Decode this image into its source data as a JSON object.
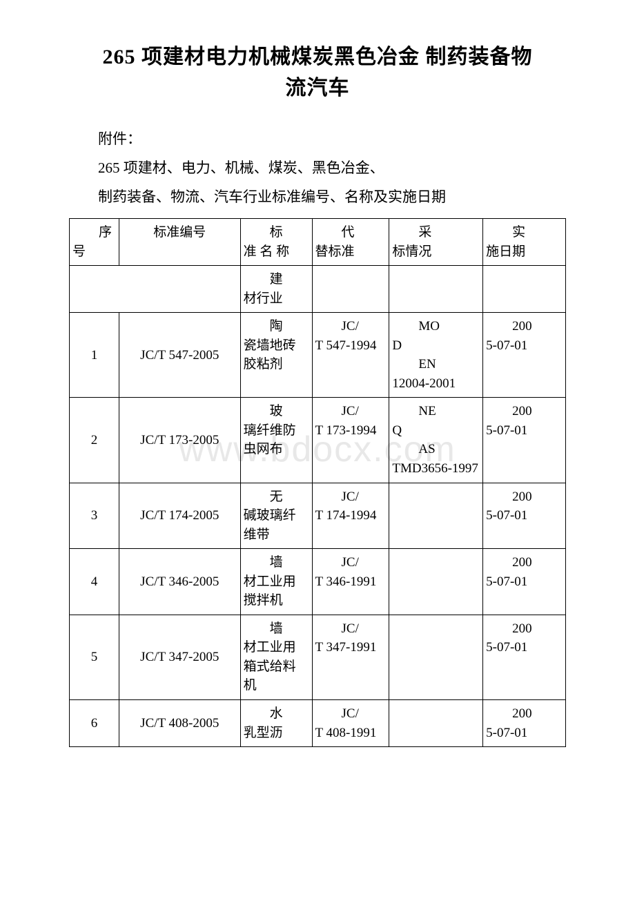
{
  "watermark_text": "www.bdocx.com",
  "title_line1": "265 项建材电力机械煤炭黑色冶金 制药装备物",
  "title_line2": "流汽车",
  "intro": {
    "attachment": "附件：",
    "line1": " 265 项建材、电力、机械、煤炭、黑色冶金、",
    "line2": "制药装备、物流、汽车行业标准编号、名称及实施日期"
  },
  "headers": {
    "seq1": "序",
    "seq2": "号",
    "code": "标准编号",
    "name1": "标",
    "name2": "准 名 称",
    "repl1": "代",
    "repl2": "替标准",
    "adopt1": "采",
    "adopt2": "标情况",
    "date1": "实",
    "date2": "施日期"
  },
  "section": {
    "label1": "建",
    "label2": "材行业"
  },
  "rows": [
    {
      "seq": "1",
      "code": "JC/T 547-2005",
      "name_ind": "陶",
      "name_rest": "瓷墙地砖胶粘剂",
      "repl_ind": "JC/",
      "repl_rest": "T 547-1994",
      "adopt_ind": "MO",
      "adopt_rest1": "D",
      "adopt_ind2": "EN",
      "adopt_rest2": "12004-2001",
      "date_ind": "200",
      "date_rest": "5-07-01"
    },
    {
      "seq": "2",
      "code": "JC/T 173-2005",
      "name_ind": "玻",
      "name_rest": "璃纤维防虫网布",
      "repl_ind": "JC/",
      "repl_rest": "T 173-1994",
      "adopt_ind": "NE",
      "adopt_rest1": "Q",
      "adopt_ind2": "AS",
      "adopt_rest2": "TMD3656-1997",
      "date_ind": "200",
      "date_rest": "5-07-01"
    },
    {
      "seq": "3",
      "code": "JC/T 174-2005",
      "name_ind": "无",
      "name_rest": "碱玻璃纤维带",
      "repl_ind": "JC/",
      "repl_rest": "T 174-1994",
      "adopt": "",
      "date_ind": "200",
      "date_rest": "5-07-01"
    },
    {
      "seq": "4",
      "code": "JC/T 346-2005",
      "name_ind": "墙",
      "name_rest": "材工业用搅拌机",
      "repl_ind": "JC/",
      "repl_rest": "T 346-1991",
      "adopt": "",
      "date_ind": "200",
      "date_rest": "5-07-01"
    },
    {
      "seq": "5",
      "code": "JC/T 347-2005",
      "name_ind": "墙",
      "name_rest": "材工业用箱式给料机",
      "repl_ind": "JC/",
      "repl_rest": "T 347-1991",
      "adopt": "",
      "date_ind": "200",
      "date_rest": "5-07-01"
    },
    {
      "seq": "6",
      "code": "JC/T 408-2005",
      "name_ind": "水",
      "name_rest": "乳型沥",
      "repl_ind": "JC/",
      "repl_rest": "T 408-1991",
      "adopt": "",
      "date_ind": "200",
      "date_rest": "5-07-01"
    }
  ],
  "colors": {
    "text": "#000000",
    "background": "#ffffff",
    "border": "#000000",
    "watermark": "#e8e8e8"
  },
  "fonts": {
    "body": "SimSun",
    "numbers": "Times New Roman",
    "title_size_pt": 22,
    "body_size_pt": 16,
    "table_size_pt": 14
  }
}
